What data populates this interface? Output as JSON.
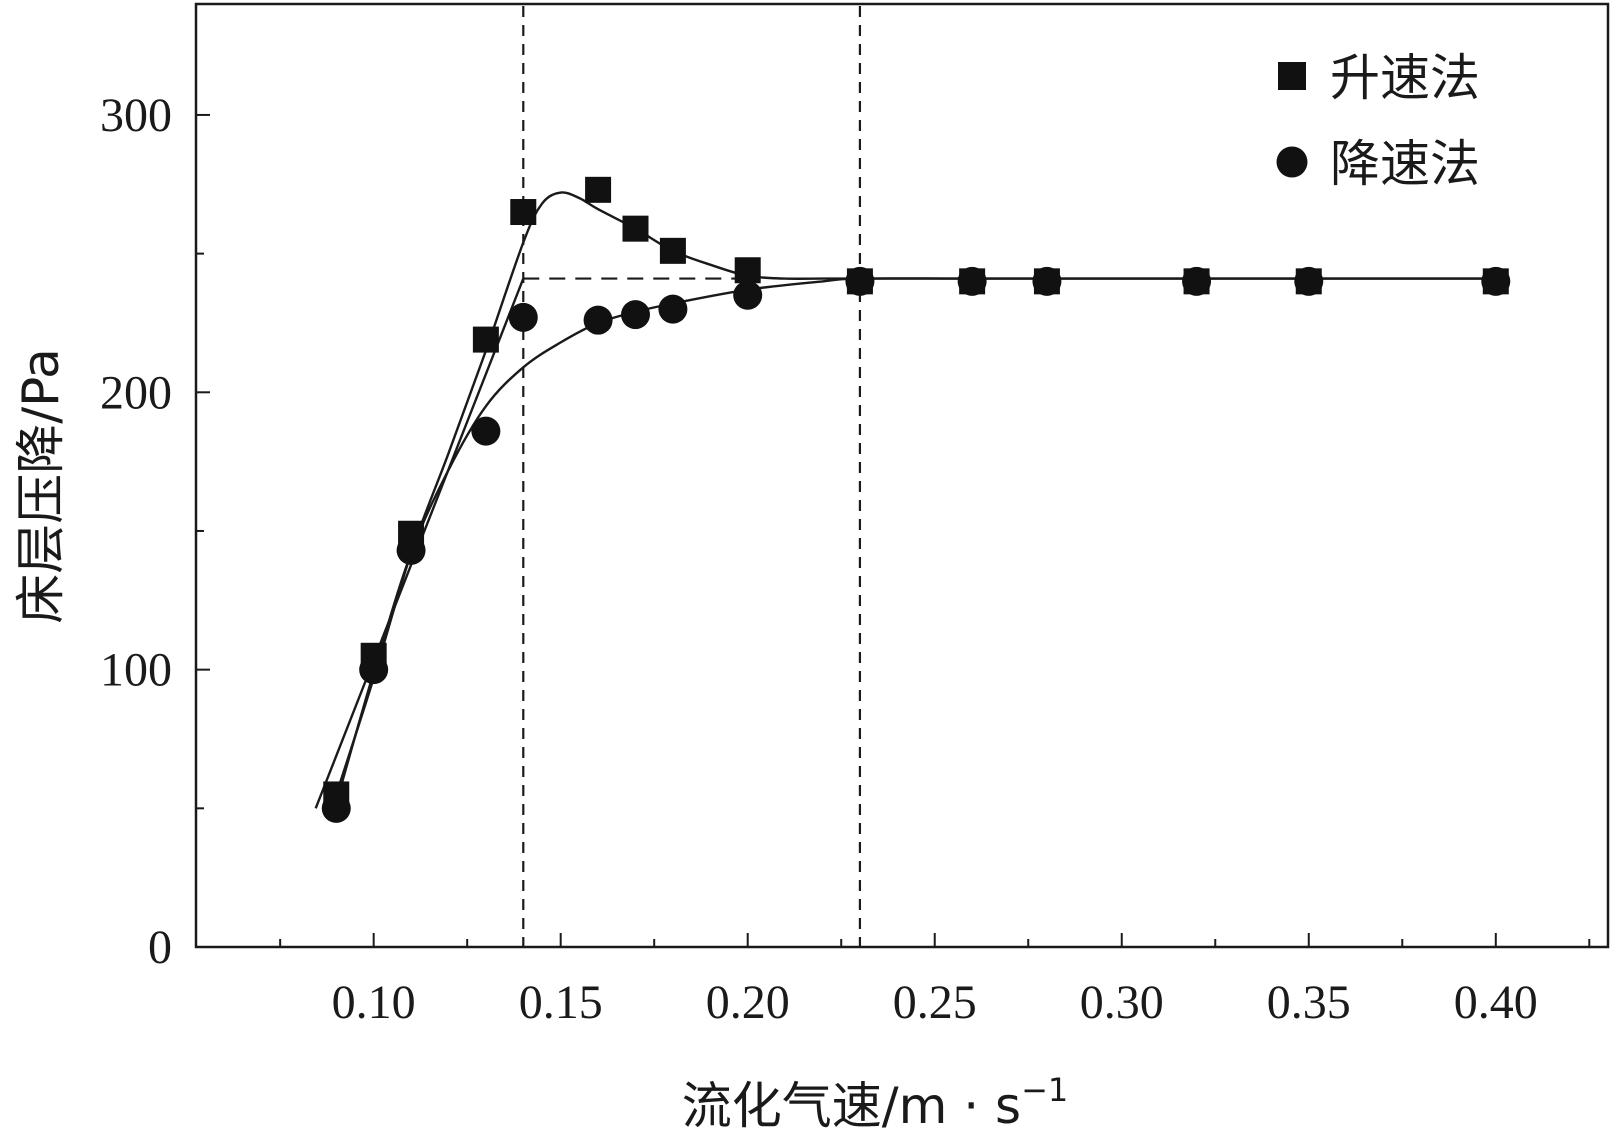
{
  "chart_data": {
    "type": "scatter",
    "title": "",
    "xlabel": "流化气速/m · s",
    "xlabel_superscript": "−1",
    "ylabel": "床层压降/Pa",
    "xlim": [
      0.0525,
      0.43
    ],
    "ylim": [
      0,
      340
    ],
    "x_ticks": [
      0.1,
      0.15,
      0.2,
      0.25,
      0.3,
      0.35,
      0.4
    ],
    "x_tick_labels": [
      "0.10",
      "0.15",
      "0.20",
      "0.25",
      "0.30",
      "0.35",
      "0.40"
    ],
    "y_ticks": [
      0,
      100,
      200,
      300
    ],
    "y_tick_labels": [
      "0",
      "100",
      "200",
      "300"
    ],
    "grid": false,
    "legend_position": "top-right",
    "series": [
      {
        "name": "升速法",
        "marker": "square",
        "color": "#111111",
        "x": [
          0.09,
          0.1,
          0.11,
          0.13,
          0.14,
          0.16,
          0.17,
          0.18,
          0.2,
          0.23,
          0.26,
          0.28,
          0.32,
          0.35,
          0.4
        ],
        "y": [
          55,
          105,
          149,
          219,
          265,
          273,
          259,
          251,
          244,
          240,
          240,
          240,
          240,
          240,
          240
        ]
      },
      {
        "name": "降速法",
        "marker": "circle",
        "color": "#111111",
        "x": [
          0.09,
          0.1,
          0.11,
          0.13,
          0.14,
          0.16,
          0.17,
          0.18,
          0.2,
          0.23,
          0.26,
          0.28,
          0.32,
          0.35,
          0.4
        ],
        "y": [
          50,
          100,
          143,
          186,
          227,
          226,
          228,
          230,
          235,
          240,
          240,
          240,
          240,
          240,
          240
        ]
      }
    ],
    "fit_curves": [
      {
        "name": "升速法-拟合",
        "x": [
          0.09,
          0.1,
          0.11,
          0.12,
          0.13,
          0.14,
          0.145,
          0.15,
          0.155,
          0.16,
          0.17,
          0.18,
          0.19,
          0.2,
          0.21,
          0.22,
          0.23,
          0.26,
          0.3,
          0.35,
          0.4
        ],
        "y": [
          55,
          97,
          142,
          178,
          215,
          254,
          268,
          272,
          270,
          266,
          259,
          251,
          246,
          242,
          241,
          241,
          241,
          241,
          241,
          241,
          241
        ]
      },
      {
        "name": "降速法-拟合",
        "x": [
          0.09,
          0.1,
          0.11,
          0.12,
          0.13,
          0.14,
          0.15,
          0.16,
          0.17,
          0.18,
          0.2,
          0.22,
          0.23,
          0.26,
          0.3,
          0.35,
          0.4
        ],
        "y": [
          52,
          99,
          142,
          172,
          195,
          209,
          218,
          225,
          229,
          232,
          237,
          240,
          241,
          241,
          241,
          241,
          241
        ]
      },
      {
        "name": "线性拟合",
        "x": [
          0.0845,
          0.14
        ],
        "y": [
          50,
          241
        ]
      }
    ],
    "reference_lines": {
      "vertical_dashed_x": [
        0.14,
        0.23
      ],
      "horizontal_dashed": {
        "y": 241,
        "x_from": 0.14,
        "x_to": 0.2
      }
    }
  }
}
